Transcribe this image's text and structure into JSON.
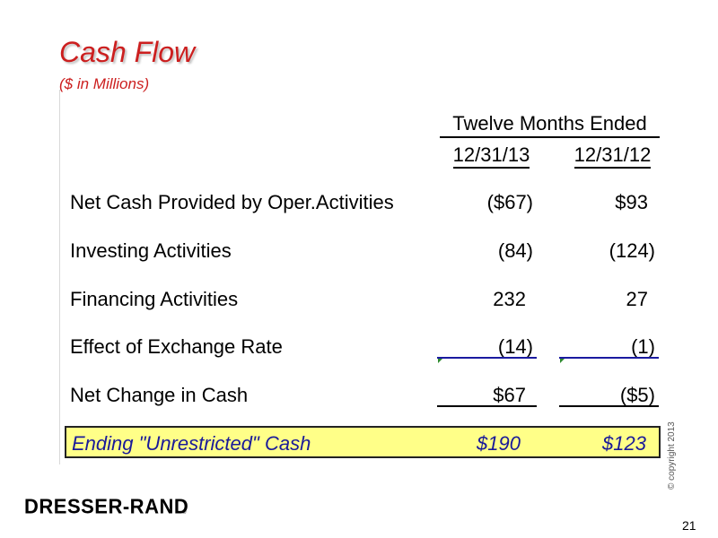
{
  "slide": {
    "title": "Cash Flow",
    "subtitle": "($ in Millions)",
    "period_header": "Twelve Months Ended",
    "col1_header": "12/31/13",
    "col2_header": "12/31/12",
    "rows": [
      {
        "label": "Net Cash Provided by Oper.Activities",
        "v1": "($67)",
        "v2": "$93"
      },
      {
        "label": "Investing Activities",
        "v1": "(84)",
        "v2": "(124)"
      },
      {
        "label": "Financing Activities",
        "v1": "232",
        "v2": "27"
      },
      {
        "label": "Effect of Exchange Rate",
        "v1": "(14)",
        "v2": "(1)"
      },
      {
        "label": "Net Change in Cash",
        "v1": "$67",
        "v2": "($5)"
      }
    ],
    "ending": {
      "label": "Ending \"Unrestricted\" Cash",
      "v1": "$190",
      "v2": "$123"
    },
    "logo_text": "DRESSER-RAND",
    "logo_mark": "®",
    "copyright": "© copyright 2013",
    "page_number": "21"
  },
  "colors": {
    "title": "#cc1f1f",
    "ending_bg": "#ffff88",
    "ending_text": "#1a1a99"
  }
}
